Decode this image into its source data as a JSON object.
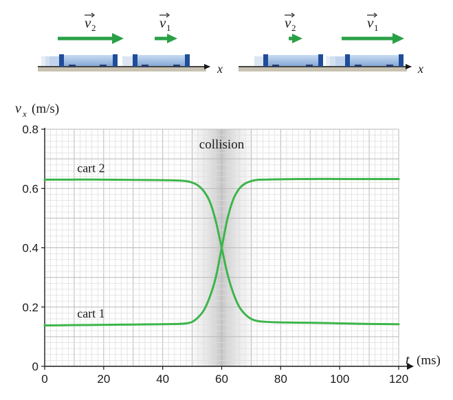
{
  "chart_data": {
    "type": "line",
    "xlabel_var": "t",
    "xlabel_unit": "(ms)",
    "ylabel_var": "v",
    "ylabel_sub": "x",
    "ylabel_unit": "(m/s)",
    "xlim": [
      0,
      120
    ],
    "ylim": [
      0,
      0.8
    ],
    "x_ticks": [
      0,
      20,
      40,
      60,
      80,
      100,
      120
    ],
    "x_tick_labels": [
      "0",
      "20",
      "40",
      "60",
      "80",
      "100",
      "120"
    ],
    "y_ticks": [
      0,
      0.2,
      0.4,
      0.6,
      0.8
    ],
    "y_tick_labels": [
      "0",
      "0.2",
      "0.4",
      "0.6",
      "0.8"
    ],
    "grid": true,
    "collision_region": [
      50,
      70
    ],
    "collision_label": "collision",
    "series": [
      {
        "name": "cart 2",
        "color": "#3cb54a",
        "x": [
          0,
          10,
          20,
          30,
          40,
          45,
          48,
          50,
          52,
          54,
          56,
          58,
          60,
          62,
          64,
          66,
          68,
          70,
          72,
          75,
          80,
          90,
          100,
          110,
          120
        ],
        "y": [
          0.63,
          0.63,
          0.63,
          0.629,
          0.628,
          0.627,
          0.625,
          0.62,
          0.61,
          0.59,
          0.555,
          0.49,
          0.4,
          0.31,
          0.245,
          0.2,
          0.175,
          0.16,
          0.153,
          0.15,
          0.148,
          0.147,
          0.145,
          0.143,
          0.142
        ]
      },
      {
        "name": "cart 1",
        "color": "#3cb54a",
        "x": [
          0,
          10,
          20,
          30,
          40,
          45,
          48,
          50,
          52,
          54,
          56,
          58,
          60,
          62,
          64,
          66,
          68,
          70,
          72,
          75,
          80,
          90,
          100,
          110,
          120
        ],
        "y": [
          0.138,
          0.139,
          0.14,
          0.141,
          0.142,
          0.143,
          0.145,
          0.15,
          0.165,
          0.19,
          0.235,
          0.3,
          0.4,
          0.5,
          0.565,
          0.6,
          0.617,
          0.625,
          0.629,
          0.63,
          0.631,
          0.632,
          0.632,
          0.632,
          0.632
        ]
      }
    ],
    "annotations": [
      {
        "text": "cart 2",
        "x": 11,
        "y": 0.655
      },
      {
        "text": "cart 1",
        "x": 11,
        "y": 0.165
      }
    ]
  },
  "diagram": {
    "left_panel": {
      "v2_label_var": "v",
      "v2_label_sub": "2",
      "v1_label_var": "v",
      "v1_label_sub": "1",
      "axis_label": "x"
    },
    "right_panel": {
      "v2_label_var": "v",
      "v2_label_sub": "2",
      "v1_label_var": "v",
      "v1_label_sub": "1",
      "axis_label": "x"
    },
    "colors": {
      "arrow": "#2aa046",
      "cart_body": "#a9c4e6",
      "cart_end": "#1f4d99",
      "track": "#c8c2b2",
      "curve": "#3cb54a"
    }
  }
}
